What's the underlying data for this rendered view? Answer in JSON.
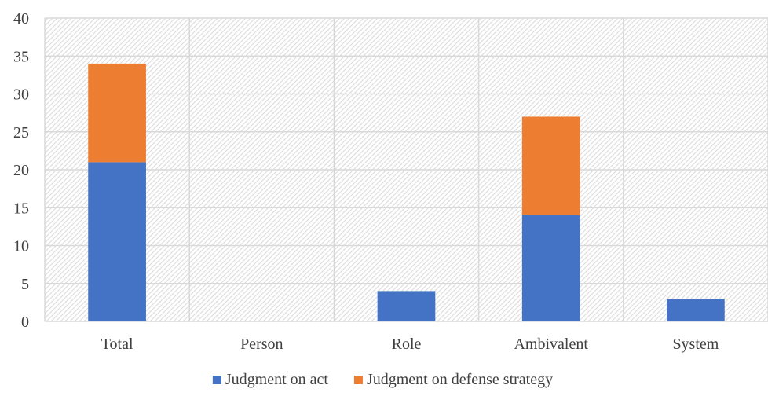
{
  "chart_data": {
    "type": "bar",
    "stacked": true,
    "title": "",
    "xlabel": "",
    "ylabel": "",
    "categories": [
      "Total",
      "Person",
      "Role",
      "Ambivalent",
      "System"
    ],
    "series": [
      {
        "name": "Judgment on act",
        "values": [
          21,
          0,
          4,
          14,
          3
        ],
        "color": "#4472C4"
      },
      {
        "name": "Judgment on defense strategy",
        "values": [
          13,
          0,
          0,
          13,
          0
        ],
        "color": "#ED7D31"
      }
    ],
    "ylim": [
      0,
      40
    ],
    "yticks": [
      0,
      5,
      10,
      15,
      20,
      25,
      30,
      35,
      40
    ],
    "grid": true,
    "plot_background": "diagonal-hatch",
    "legend_position": "bottom"
  }
}
